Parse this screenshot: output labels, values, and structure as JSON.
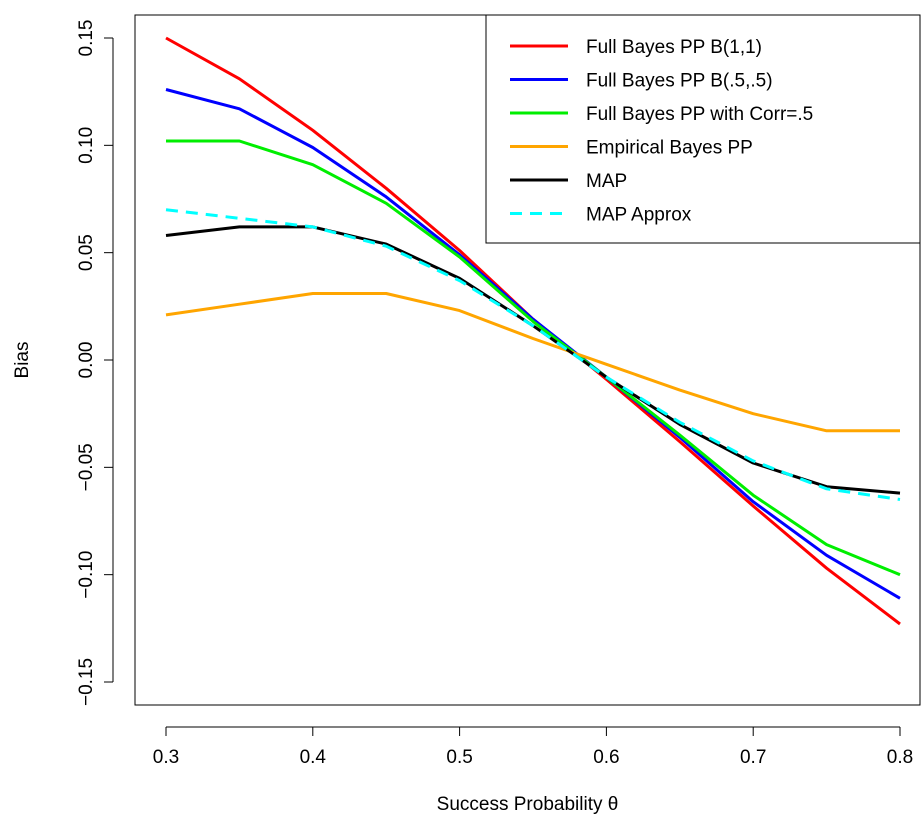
{
  "chart_data": {
    "type": "line",
    "title": "",
    "xlabel": "Success Probability θ",
    "ylabel": "Bias",
    "xlim": [
      0.3,
      0.8
    ],
    "ylim": [
      -0.15,
      0.15
    ],
    "x_ticks": [
      0.3,
      0.4,
      0.5,
      0.6,
      0.7,
      0.8
    ],
    "x_tick_labels": [
      "0.3",
      "0.4",
      "0.5",
      "0.6",
      "0.7",
      "0.8"
    ],
    "y_ticks": [
      -0.15,
      -0.1,
      -0.05,
      0.0,
      0.05,
      0.1,
      0.15
    ],
    "y_tick_labels": [
      "−0.15",
      "−0.10",
      "−0.05",
      "0.00",
      "0.05",
      "0.10",
      "0.15"
    ],
    "grid": false,
    "legend_position": "top-right",
    "x": [
      0.3,
      0.35,
      0.4,
      0.45,
      0.5,
      0.55,
      0.6,
      0.65,
      0.7,
      0.75,
      0.8
    ],
    "series": [
      {
        "name": "Full Bayes PP B(1,1)",
        "color": "#ff0000",
        "dash": "solid",
        "values": [
          0.15,
          0.131,
          0.107,
          0.08,
          0.051,
          0.019,
          -0.009,
          -0.038,
          -0.068,
          -0.097,
          -0.123
        ]
      },
      {
        "name": "Full Bayes PP B(.5,.5)",
        "color": "#0000ff",
        "dash": "solid",
        "values": [
          0.126,
          0.117,
          0.099,
          0.076,
          0.049,
          0.019,
          -0.008,
          -0.036,
          -0.066,
          -0.091,
          -0.111
        ]
      },
      {
        "name": "Full Bayes PP with Corr=.5",
        "color": "#00ee00",
        "dash": "solid",
        "values": [
          0.102,
          0.102,
          0.091,
          0.073,
          0.048,
          0.018,
          -0.008,
          -0.035,
          -0.063,
          -0.086,
          -0.1
        ]
      },
      {
        "name": "Empirical Bayes PP",
        "color": "#ffa500",
        "dash": "solid",
        "values": [
          0.021,
          0.026,
          0.031,
          0.031,
          0.023,
          0.01,
          -0.002,
          -0.014,
          -0.025,
          -0.033,
          -0.033
        ]
      },
      {
        "name": "MAP",
        "color": "#000000",
        "dash": "solid",
        "values": [
          0.058,
          0.062,
          0.062,
          0.054,
          0.038,
          0.016,
          -0.008,
          -0.03,
          -0.048,
          -0.059,
          -0.062
        ]
      },
      {
        "name": "MAP Approx",
        "color": "#00ffff",
        "dash": "dashed",
        "values": [
          0.07,
          0.066,
          0.062,
          0.053,
          0.037,
          0.016,
          -0.008,
          -0.029,
          -0.047,
          -0.06,
          -0.065
        ]
      }
    ]
  }
}
